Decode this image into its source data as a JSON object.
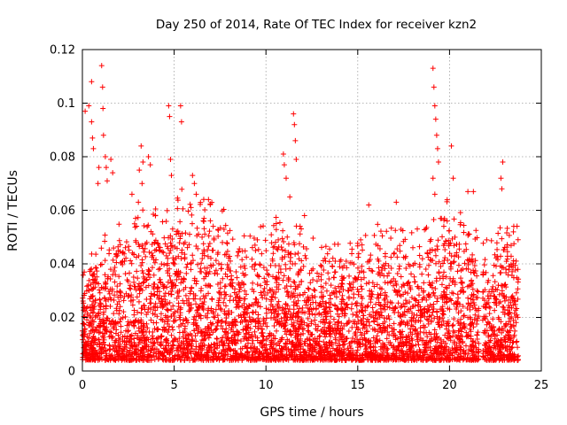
{
  "chart_data": {
    "type": "scatter",
    "title": "Day 250 of 2014, Rate Of TEC Index for receiver kzn2",
    "xlabel": "GPS time / hours",
    "ylabel": "ROTI / TECUs",
    "xlim": [
      0,
      25
    ],
    "ylim": [
      0,
      0.12
    ],
    "xticks": [
      "0",
      "5",
      "10",
      "15",
      "20",
      "25"
    ],
    "yticks": [
      "0",
      "0.02",
      "0.04",
      "0.06",
      "0.08",
      "0.1",
      "0.12"
    ],
    "grid": true,
    "marker": "plus",
    "color": "#ff0000",
    "gap_hours": [
      21.6,
      21.8
    ],
    "envelope": {
      "description": "upper extent of dense ROTI cloud per hour",
      "hours": [
        0,
        1,
        2,
        3,
        4,
        5,
        6,
        7,
        8,
        9,
        10,
        11,
        12,
        13,
        14,
        15,
        16,
        17,
        18,
        19,
        20,
        21,
        22,
        23
      ],
      "upper": [
        0.035,
        0.045,
        0.05,
        0.055,
        0.055,
        0.06,
        0.065,
        0.06,
        0.055,
        0.05,
        0.05,
        0.055,
        0.05,
        0.045,
        0.045,
        0.045,
        0.05,
        0.05,
        0.05,
        0.05,
        0.06,
        0.05,
        0.045,
        0.05
      ],
      "lower": 0.004
    },
    "outliers": [
      {
        "x": 0.15,
        "y": 0.097
      },
      {
        "x": 0.35,
        "y": 0.099
      },
      {
        "x": 0.5,
        "y": 0.108
      },
      {
        "x": 0.55,
        "y": 0.087
      },
      {
        "x": 0.6,
        "y": 0.083
      },
      {
        "x": 0.5,
        "y": 0.093
      },
      {
        "x": 1.05,
        "y": 0.114
      },
      {
        "x": 1.1,
        "y": 0.106
      },
      {
        "x": 1.12,
        "y": 0.098
      },
      {
        "x": 1.15,
        "y": 0.088
      },
      {
        "x": 1.25,
        "y": 0.08
      },
      {
        "x": 1.3,
        "y": 0.076
      },
      {
        "x": 1.35,
        "y": 0.071
      },
      {
        "x": 1.55,
        "y": 0.079
      },
      {
        "x": 1.65,
        "y": 0.074
      },
      {
        "x": 0.85,
        "y": 0.07
      },
      {
        "x": 0.9,
        "y": 0.076
      },
      {
        "x": 3.2,
        "y": 0.084
      },
      {
        "x": 3.3,
        "y": 0.078
      },
      {
        "x": 3.1,
        "y": 0.075
      },
      {
        "x": 3.25,
        "y": 0.07
      },
      {
        "x": 3.6,
        "y": 0.08
      },
      {
        "x": 3.7,
        "y": 0.077
      },
      {
        "x": 4.7,
        "y": 0.099
      },
      {
        "x": 4.75,
        "y": 0.095
      },
      {
        "x": 4.8,
        "y": 0.079
      },
      {
        "x": 4.85,
        "y": 0.073
      },
      {
        "x": 5.35,
        "y": 0.099
      },
      {
        "x": 5.4,
        "y": 0.093
      },
      {
        "x": 2.7,
        "y": 0.066
      },
      {
        "x": 3.05,
        "y": 0.063
      },
      {
        "x": 10.95,
        "y": 0.081
      },
      {
        "x": 11.0,
        "y": 0.077
      },
      {
        "x": 11.1,
        "y": 0.072
      },
      {
        "x": 11.5,
        "y": 0.096
      },
      {
        "x": 11.55,
        "y": 0.092
      },
      {
        "x": 11.6,
        "y": 0.086
      },
      {
        "x": 11.65,
        "y": 0.079
      },
      {
        "x": 11.3,
        "y": 0.065
      },
      {
        "x": 12.1,
        "y": 0.058
      },
      {
        "x": 19.1,
        "y": 0.113
      },
      {
        "x": 19.15,
        "y": 0.106
      },
      {
        "x": 19.2,
        "y": 0.099
      },
      {
        "x": 19.25,
        "y": 0.094
      },
      {
        "x": 19.3,
        "y": 0.088
      },
      {
        "x": 19.35,
        "y": 0.083
      },
      {
        "x": 19.4,
        "y": 0.078
      },
      {
        "x": 19.1,
        "y": 0.072
      },
      {
        "x": 19.2,
        "y": 0.066
      },
      {
        "x": 20.1,
        "y": 0.084
      },
      {
        "x": 20.2,
        "y": 0.072
      },
      {
        "x": 21.0,
        "y": 0.067
      },
      {
        "x": 21.3,
        "y": 0.067
      },
      {
        "x": 22.9,
        "y": 0.078
      },
      {
        "x": 23.5,
        "y": 0.054
      },
      {
        "x": 17.1,
        "y": 0.063
      },
      {
        "x": 15.6,
        "y": 0.062
      },
      {
        "x": 6.0,
        "y": 0.073
      },
      {
        "x": 6.1,
        "y": 0.07
      },
      {
        "x": 6.2,
        "y": 0.066
      },
      {
        "x": 2.9,
        "y": 0.057
      },
      {
        "x": 22.8,
        "y": 0.072
      },
      {
        "x": 22.85,
        "y": 0.068
      }
    ]
  }
}
